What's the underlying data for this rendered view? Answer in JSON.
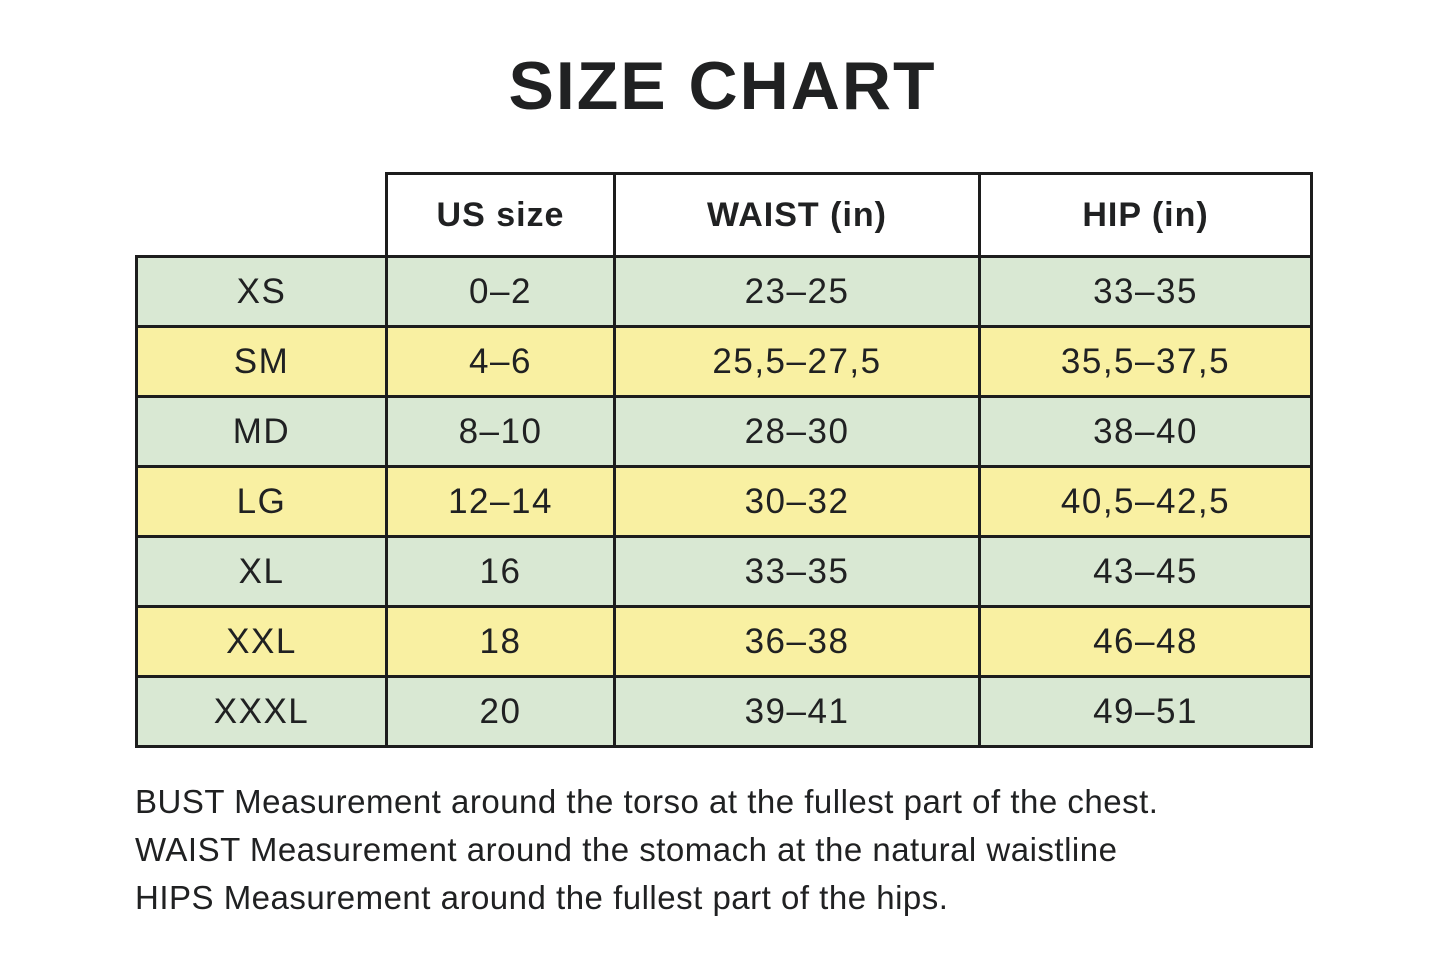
{
  "page": {
    "title": "SIZE CHART"
  },
  "colors": {
    "row_green": "#d9e8d3",
    "row_yellow": "#f9f0a2",
    "border": "#1d1d1d",
    "text": "#202122",
    "background": "#ffffff"
  },
  "chart_data": {
    "type": "table",
    "title": "SIZE CHART",
    "columns": [
      "",
      "US size",
      "WAIST (in)",
      "HIP (in)"
    ],
    "rows": [
      {
        "size": "XS",
        "us_size": "0–2",
        "waist": "23–25",
        "hip": "33–35",
        "tone": "green"
      },
      {
        "size": "SM",
        "us_size": "4–6",
        "waist": "25,5–27,5",
        "hip": "35,5–37,5",
        "tone": "yellow"
      },
      {
        "size": "MD",
        "us_size": "8–10",
        "waist": "28–30",
        "hip": "38–40",
        "tone": "green"
      },
      {
        "size": "LG",
        "us_size": "12–14",
        "waist": "30–32",
        "hip": "40,5–42,5",
        "tone": "yellow"
      },
      {
        "size": "XL",
        "us_size": "16",
        "waist": "33–35",
        "hip": "43–45",
        "tone": "green"
      },
      {
        "size": "XXL",
        "us_size": "18",
        "waist": "36–38",
        "hip": "46–48",
        "tone": "yellow"
      },
      {
        "size": "XXXL",
        "us_size": "20",
        "waist": "39–41",
        "hip": "49–51",
        "tone": "green"
      }
    ]
  },
  "footnotes": [
    "BUST Measurement around the torso at the fullest part of the chest.",
    "WAIST Measurement around the stomach at the natural waistline",
    "HIPS Measurement around the fullest part of the hips."
  ]
}
